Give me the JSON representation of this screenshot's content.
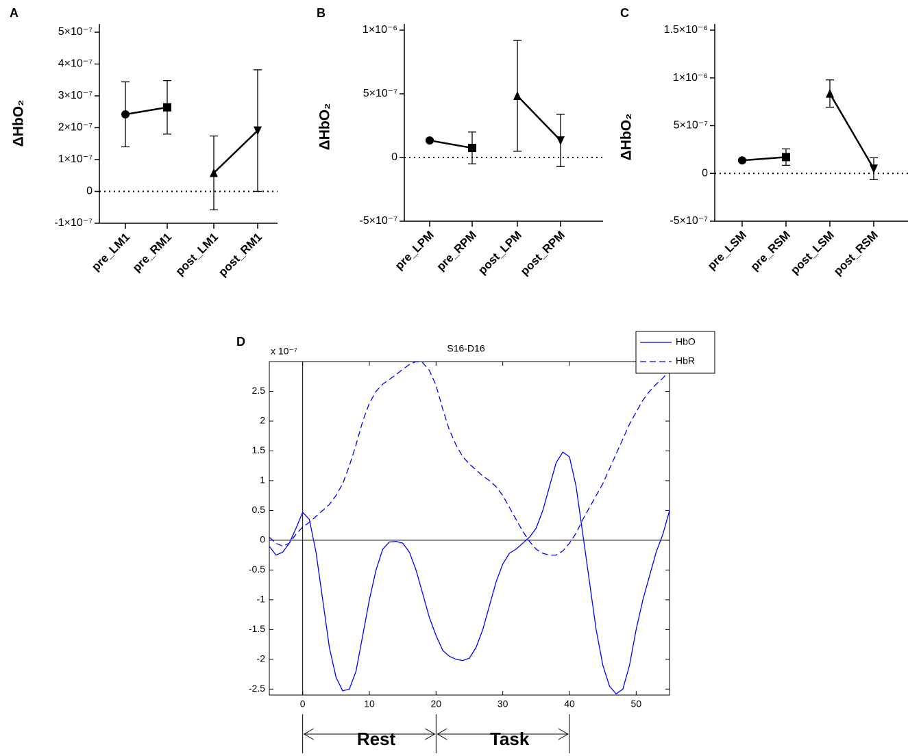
{
  "chart_data": [
    {
      "type": "errorbar",
      "panel": "A",
      "y_label": "ΔHbO₂",
      "categories": [
        "pre_LM1",
        "pre_RM1",
        "post_LM1",
        "post_RM1"
      ],
      "values": [
        2.42e-07,
        2.64e-07,
        5.8e-08,
        1.91e-07
      ],
      "errors": [
        1.02e-07,
        8.4e-08,
        1.16e-07,
        1.91e-07
      ],
      "markers": [
        "circle",
        "square",
        "triangle-up",
        "triangle-down"
      ],
      "color": "#000000",
      "ylim": [
        -1e-07,
        5e-07
      ],
      "yticks": [
        {
          "value": -1e-07,
          "label": "-1×10⁻⁷"
        },
        0,
        {
          "value": 1e-07,
          "label": "1×10⁻⁷"
        },
        {
          "value": 2e-07,
          "label": "2×10⁻⁷"
        },
        {
          "value": 3e-07,
          "label": "3×10⁻⁷"
        },
        {
          "value": 4e-07,
          "label": "4×10⁻⁷"
        },
        {
          "value": 5e-07,
          "label": "5×10⁻⁷"
        }
      ]
    },
    {
      "type": "errorbar",
      "panel": "B",
      "y_label": "ΔHbO₂",
      "categories": [
        "pre_LPM",
        "pre_RPM",
        "post_LPM",
        "post_RPM"
      ],
      "values": [
        1.34e-07,
        7.5e-08,
        4.84e-07,
        1.34e-07
      ],
      "errors": [
        1e-08,
        1.25e-07,
        4.35e-07,
        2.05e-07
      ],
      "markers": [
        "circle",
        "square",
        "triangle-up",
        "triangle-down"
      ],
      "color": "#000000",
      "ylim": [
        -5e-07,
        1e-06
      ],
      "yticks": [
        {
          "value": -5e-07,
          "label": "-5×10⁻⁷"
        },
        0,
        {
          "value": 5e-07,
          "label": "5×10⁻⁷"
        },
        {
          "value": 1e-06,
          "label": "1×10⁻⁶"
        }
      ]
    },
    {
      "type": "errorbar",
      "panel": "C",
      "y_label": "ΔHbO₂",
      "categories": [
        "pre_LSM",
        "pre_RSM",
        "post_LSM",
        "post_RSM"
      ],
      "values": [
        1.36e-07,
        1.71e-07,
        8.36e-07,
        5e-08
      ],
      "errors": [
        1e-08,
        8.6e-08,
        1.43e-07,
        1.14e-07
      ],
      "markers": [
        "circle",
        "square",
        "triangle-up",
        "triangle-down"
      ],
      "color": "#000000",
      "ylim": [
        -5e-07,
        1.5e-06
      ],
      "yticks": [
        {
          "value": -5e-07,
          "label": "-5×10⁻⁷"
        },
        0,
        {
          "value": 5e-07,
          "label": "5×10⁻⁷"
        },
        {
          "value": 1e-06,
          "label": "1×10⁻⁶"
        },
        {
          "value": 1.5e-06,
          "label": "1.5×10⁻⁶"
        }
      ]
    },
    {
      "type": "line",
      "panel": "D",
      "title": "S16-D16",
      "y_multiplier": "x 10⁻⁷",
      "annotations": [
        "Rest",
        "Task"
      ],
      "x": [
        -5,
        -4,
        -3,
        -2,
        -1,
        0,
        1,
        2,
        3,
        4,
        5,
        6,
        7,
        8,
        9,
        10,
        11,
        12,
        13,
        14,
        15,
        16,
        17,
        18,
        19,
        20,
        21,
        22,
        23,
        24,
        25,
        26,
        27,
        28,
        29,
        30,
        31,
        32,
        33,
        34,
        35,
        36,
        37,
        38,
        39,
        40,
        41,
        42,
        43,
        44,
        45,
        46,
        47,
        48,
        49,
        50,
        51,
        52,
        53,
        54,
        55
      ],
      "series": [
        {
          "name": "HbO",
          "color": "#0000ff",
          "dash": false,
          "values": [
            -0.1,
            -0.25,
            -0.2,
            -0.05,
            0.2,
            0.47,
            0.35,
            -0.2,
            -1.0,
            -1.8,
            -2.3,
            -2.53,
            -2.5,
            -2.2,
            -1.6,
            -1.0,
            -0.5,
            -0.15,
            -0.03,
            -0.02,
            -0.05,
            -0.2,
            -0.5,
            -0.9,
            -1.3,
            -1.6,
            -1.85,
            -1.95,
            -2.0,
            -2.02,
            -1.98,
            -1.8,
            -1.5,
            -1.1,
            -0.7,
            -0.4,
            -0.22,
            -0.15,
            -0.05,
            0.05,
            0.2,
            0.5,
            0.9,
            1.3,
            1.48,
            1.4,
            0.9,
            0.1,
            -0.7,
            -1.5,
            -2.1,
            -2.45,
            -2.58,
            -2.5,
            -2.1,
            -1.5,
            -1.0,
            -0.6,
            -0.2,
            0.1,
            0.5
          ]
        },
        {
          "name": "HbR",
          "color": "#0000ff",
          "dash": true,
          "values": [
            0.05,
            -0.05,
            -0.1,
            -0.05,
            0.1,
            0.22,
            0.3,
            0.4,
            0.5,
            0.6,
            0.75,
            0.95,
            1.25,
            1.6,
            2.0,
            2.3,
            2.5,
            2.62,
            2.7,
            2.78,
            2.87,
            2.95,
            3.0,
            2.98,
            2.85,
            2.6,
            2.2,
            1.85,
            1.6,
            1.4,
            1.28,
            1.18,
            1.08,
            1.0,
            0.9,
            0.75,
            0.55,
            0.35,
            0.15,
            -0.02,
            -0.15,
            -0.22,
            -0.25,
            -0.25,
            -0.18,
            -0.05,
            0.12,
            0.35,
            0.55,
            0.75,
            0.95,
            1.2,
            1.45,
            1.7,
            1.95,
            2.15,
            2.35,
            2.5,
            2.62,
            2.72,
            2.85
          ]
        }
      ],
      "xlim": [
        -5,
        55
      ],
      "ylim": [
        -2.6,
        3.0
      ],
      "xticks": [
        0,
        10,
        20,
        30,
        40,
        50
      ],
      "yticks": [
        -2.5,
        -2,
        -1.5,
        -1,
        -0.5,
        0,
        0.5,
        1,
        1.5,
        2,
        2.5
      ],
      "legend": "upper right"
    }
  ]
}
